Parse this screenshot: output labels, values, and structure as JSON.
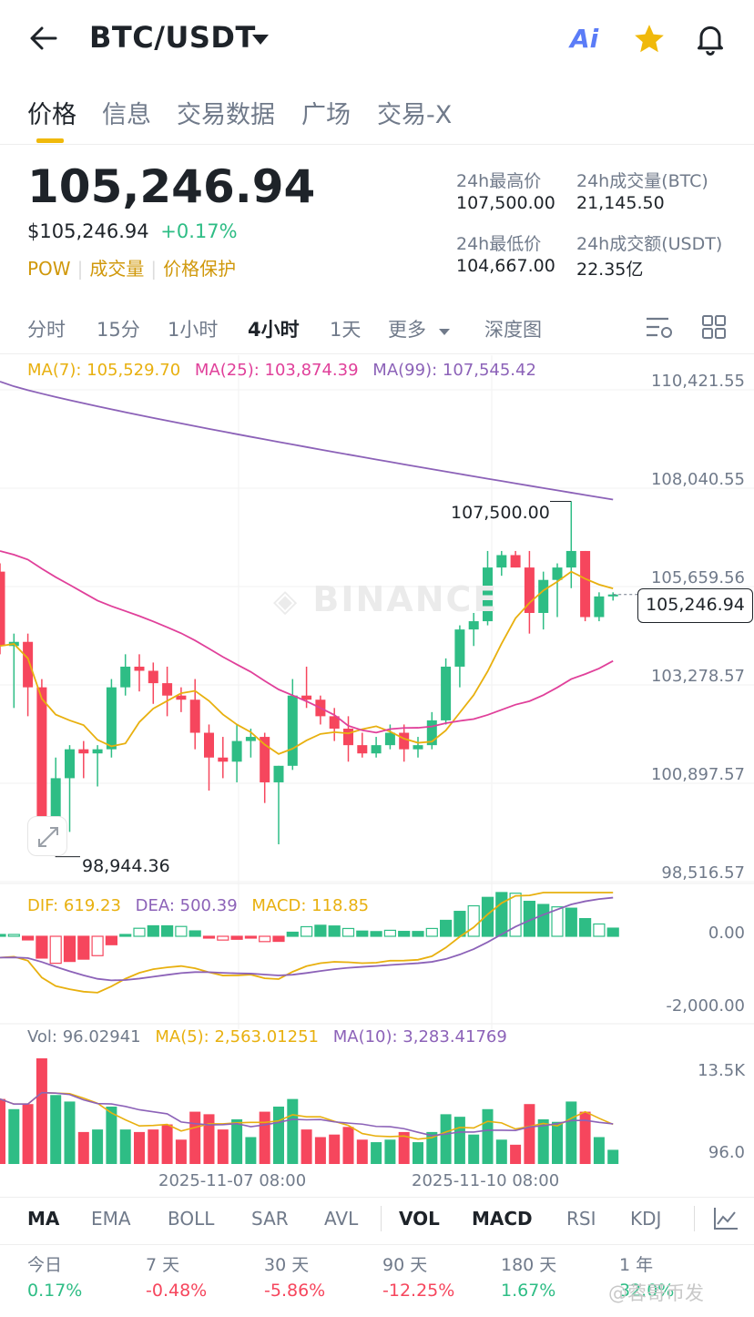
{
  "header": {
    "title": "BTC/USDT",
    "ai_label": "Ai"
  },
  "tabs": [
    "价格",
    "信息",
    "交易数据",
    "广场",
    "交易-X"
  ],
  "price": {
    "last": "105,246.94",
    "usd": "$105,246.94",
    "change": "+0.17%",
    "tags": [
      "POW",
      "成交量",
      "价格保护"
    ]
  },
  "stats": {
    "high_label": "24h最高价",
    "high": "107,500.00",
    "vol_btc_label": "24h成交量(BTC)",
    "vol_btc": "21,145.50",
    "low_label": "24h最低价",
    "low": "104,667.00",
    "vol_usdt_label": "24h成交额(USDT)",
    "vol_usdt": "22.35亿"
  },
  "intervals": [
    "分时",
    "15分",
    "1小时",
    "4小时",
    "1天",
    "更多",
    "深度图"
  ],
  "ma": {
    "ma7": "MA(7): 105,529.70",
    "ma25": "MA(25): 103,874.39",
    "ma99": "MA(99): 107,545.42"
  },
  "y_axis": [
    "110,421.55",
    "108,040.55",
    "105,659.56",
    "103,278.57",
    "100,897.57",
    "98,516.57"
  ],
  "annotations": {
    "high": "107,500.00",
    "low": "98,944.36",
    "current": "105,246.94",
    "watermark": "BINANCE"
  },
  "macd": {
    "dif": "DIF: 619.23",
    "dea": "DEA: 500.39",
    "macd": "MACD: 118.85",
    "y_top": "0.00",
    "y_bottom": "-2,000.00"
  },
  "vol": {
    "vol": "Vol: 96.02941",
    "ma5": "MA(5): 2,563.01251",
    "ma10": "MA(10): 3,283.41769",
    "y_top": "13.5K",
    "y_bottom": "96.0"
  },
  "x_axis": [
    "2025-11-07 08:00",
    "2025-11-10 08:00"
  ],
  "indicators": [
    "MA",
    "EMA",
    "BOLL",
    "SAR",
    "AVL",
    "VOL",
    "MACD",
    "RSI",
    "KDJ"
  ],
  "performance": [
    {
      "label": "今日",
      "value": "0.17%"
    },
    {
      "label": "7 天",
      "value": "-0.48%"
    },
    {
      "label": "30 天",
      "value": "-5.86%"
    },
    {
      "label": "90 天",
      "value": "-12.25%"
    },
    {
      "label": "180 天",
      "value": "1.67%"
    },
    {
      "label": "1 年",
      "value": "32.0%"
    }
  ],
  "footer_watermark": "@蓉哥币发",
  "colors": {
    "up": "#2ebd85",
    "down": "#f6465d",
    "ma7": "#e8b00f",
    "ma25": "#e0409a",
    "ma99": "#8c62b8",
    "accent": "#f0b90b"
  },
  "chart_data": {
    "type": "candlestick",
    "y_range": [
      98516.57,
      110421.55
    ],
    "candles": [
      [
        105800,
        106000,
        103800,
        104000
      ],
      [
        104000,
        104300,
        102500,
        104100
      ],
      [
        104100,
        104300,
        102300,
        103000
      ],
      [
        103000,
        103200,
        99400,
        99800
      ],
      [
        99800,
        101300,
        98944.36,
        100800
      ],
      [
        100800,
        101600,
        99500,
        101500
      ],
      [
        101500,
        101700,
        100800,
        101400
      ],
      [
        101400,
        101600,
        100600,
        101500
      ],
      [
        101500,
        103200,
        101300,
        103000
      ],
      [
        103000,
        103800,
        102800,
        103500
      ],
      [
        103500,
        103800,
        102900,
        103400
      ],
      [
        103400,
        103600,
        102600,
        103100
      ],
      [
        103100,
        103500,
        102300,
        102800
      ],
      [
        102800,
        103000,
        102400,
        102700
      ],
      [
        102700,
        103200,
        101500,
        101900
      ],
      [
        101900,
        102100,
        100500,
        101300
      ],
      [
        101300,
        101800,
        100800,
        101200
      ],
      [
        101200,
        102100,
        100700,
        101700
      ],
      [
        101700,
        102000,
        101300,
        101800
      ],
      [
        101800,
        101900,
        100200,
        100700
      ],
      [
        100700,
        101100,
        99200,
        101100
      ],
      [
        101100,
        103200,
        101000,
        102800
      ],
      [
        102800,
        103500,
        102500,
        102700
      ],
      [
        102700,
        102800,
        102100,
        102300
      ],
      [
        102300,
        102500,
        101700,
        102000
      ],
      [
        102000,
        102300,
        101200,
        101600
      ],
      [
        101600,
        101900,
        101300,
        101400
      ],
      [
        101400,
        101800,
        101300,
        101600
      ],
      [
        101600,
        102100,
        101500,
        101900
      ],
      [
        101900,
        102100,
        101200,
        101500
      ],
      [
        101500,
        101800,
        101300,
        101600
      ],
      [
        101600,
        102400,
        101500,
        102200
      ],
      [
        102200,
        103700,
        102100,
        103500
      ],
      [
        103500,
        104500,
        103000,
        104400
      ],
      [
        104400,
        104800,
        104000,
        104600
      ],
      [
        104600,
        106300,
        104500,
        105900
      ],
      [
        105900,
        106300,
        105700,
        106200
      ],
      [
        106200,
        106300,
        105900,
        105900
      ],
      [
        105900,
        106300,
        104300,
        104800
      ],
      [
        104800,
        105800,
        104400,
        105600
      ],
      [
        105600,
        106000,
        104700,
        105900
      ],
      [
        105900,
        107500,
        105400,
        106300
      ],
      [
        106300,
        106300,
        104600,
        104700
      ],
      [
        104700,
        105300,
        104600,
        105200
      ],
      [
        105200,
        105300,
        105100,
        105246.94
      ]
    ]
  }
}
